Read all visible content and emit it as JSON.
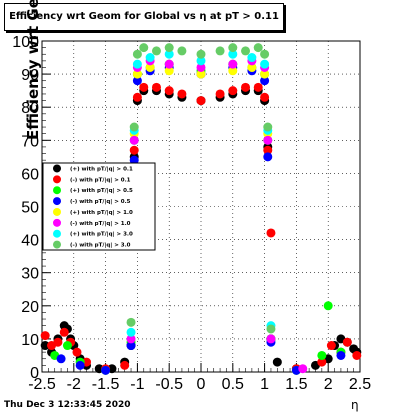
{
  "chart_data": {
    "type": "scatter",
    "title": "Efficiency wrt Geom for Global vs   η at pT > 0.11",
    "xlabel": "η",
    "ylabel": "Efficiency wrt Geom (%)",
    "xlim": [
      -2.5,
      2.5
    ],
    "ylim": [
      0,
      100
    ],
    "x_ticks": [
      "-2.5",
      "-2",
      "-1.5",
      "-1",
      "-0.5",
      "0",
      "0.5",
      "1",
      "1.5",
      "2",
      "2.5"
    ],
    "y_ticks": [
      "0",
      "10",
      "20",
      "30",
      "40",
      "50",
      "60",
      "70",
      "80",
      "90",
      "100"
    ],
    "grid": true,
    "legend_position": "left-middle",
    "series": [
      {
        "name": "(+) with pT/|q| > 0.1",
        "color": "#000000",
        "x": [
          -2.45,
          -2.35,
          -2.25,
          -2.15,
          -2.1,
          -2.05,
          -2.0,
          -1.9,
          -1.8,
          -1.6,
          -1.4,
          -1.2,
          -1.1,
          -1.05,
          -1.0,
          -0.9,
          -0.7,
          -0.5,
          -0.3,
          0.0,
          0.3,
          0.5,
          0.7,
          0.9,
          1.0,
          1.05,
          1.1,
          1.2,
          1.5,
          1.8,
          2.0,
          2.1,
          2.2,
          2.3,
          2.4,
          2.45
        ],
        "y": [
          8,
          6,
          10,
          14,
          13,
          10,
          8,
          4,
          2,
          1,
          1,
          3,
          8,
          65,
          82,
          85,
          85,
          84,
          83,
          82,
          83,
          84,
          85,
          85,
          82,
          68,
          10,
          3,
          1,
          2,
          4,
          8,
          10,
          9,
          7,
          6
        ]
      },
      {
        "name": "(-) with pT/|q| > 0.1",
        "color": "#ff0000",
        "x": [
          -2.45,
          -2.35,
          -2.25,
          -2.15,
          -2.05,
          -1.95,
          -1.8,
          -1.5,
          -1.2,
          -1.05,
          -1.0,
          -0.9,
          -0.7,
          -0.5,
          -0.3,
          0.0,
          0.3,
          0.5,
          0.7,
          0.9,
          1.0,
          1.05,
          1.1,
          1.5,
          1.9,
          2.05,
          2.2,
          2.3,
          2.45
        ],
        "y": [
          11,
          8,
          9,
          12,
          9,
          6,
          3,
          1,
          2,
          67,
          83,
          86,
          86,
          85,
          84,
          82,
          84,
          85,
          86,
          86,
          83,
          67,
          42,
          1,
          3,
          8,
          6,
          9,
          5
        ]
      },
      {
        "name": "(+) with pT/|q| > 0.5",
        "color": "#00ff00",
        "x": [
          -2.3,
          -2.1,
          -1.9,
          -1.5,
          -1.1,
          -1.05,
          -1.0,
          -0.8,
          -0.5,
          0.0,
          0.5,
          0.8,
          1.0,
          1.05,
          1.1,
          1.5,
          1.9,
          2.0,
          2.2
        ],
        "y": [
          5,
          8,
          3,
          0.5,
          9,
          70,
          90,
          92,
          93,
          91,
          93,
          92,
          90,
          70,
          10,
          0.5,
          5,
          20,
          6
        ]
      },
      {
        "name": "(-) with pT/|q| > 0.5",
        "color": "#0000ff",
        "x": [
          -2.2,
          -1.9,
          -1.5,
          -1.1,
          -1.05,
          -1.0,
          -0.8,
          -0.5,
          0.0,
          0.5,
          0.8,
          1.0,
          1.05,
          1.1,
          1.5,
          2.2
        ],
        "y": [
          4,
          2,
          0.5,
          8,
          64,
          88,
          91,
          92,
          90,
          92,
          91,
          88,
          65,
          9,
          0.5,
          5
        ]
      },
      {
        "name": "(+) with pT/|q| > 1.0",
        "color": "#ffff00",
        "x": [
          -1.05,
          -1.0,
          -0.8,
          -0.5,
          0.0,
          0.5,
          0.8,
          1.0,
          1.05
        ],
        "y": [
          72,
          90,
          92,
          91,
          90,
          91,
          92,
          90,
          72
        ]
      },
      {
        "name": "(-) with pT/|q| > 1.0",
        "color": "#ff00ff",
        "x": [
          -1.1,
          -1.05,
          -1.0,
          -0.8,
          -0.5,
          0.0,
          0.5,
          0.8,
          1.0,
          1.05,
          1.1,
          1.6
        ],
        "y": [
          10,
          70,
          92,
          94,
          93,
          92,
          93,
          94,
          92,
          70,
          10,
          1
        ]
      },
      {
        "name": "(+) with pT/|q| > 3.0",
        "color": "#00ffff",
        "x": [
          -1.1,
          -1.05,
          -1.0,
          -0.8,
          -0.5,
          0.0,
          0.5,
          0.8,
          1.0,
          1.05,
          1.1
        ],
        "y": [
          12,
          73,
          93,
          95,
          96,
          94,
          96,
          95,
          93,
          73,
          14
        ]
      },
      {
        "name": "(-) with pT/|q| > 3.0",
        "color": "#66cc66",
        "x": [
          -1.1,
          -1.05,
          -1.0,
          -0.9,
          -0.7,
          -0.5,
          -0.3,
          0.0,
          0.3,
          0.5,
          0.7,
          0.9,
          1.0,
          1.05,
          1.1
        ],
        "y": [
          15,
          74,
          96,
          98,
          97,
          98,
          97,
          96,
          97,
          98,
          97,
          98,
          96,
          74,
          13
        ]
      }
    ]
  },
  "footer": {
    "timestamp": "Thu Dec  3 12:33:45 2020"
  }
}
